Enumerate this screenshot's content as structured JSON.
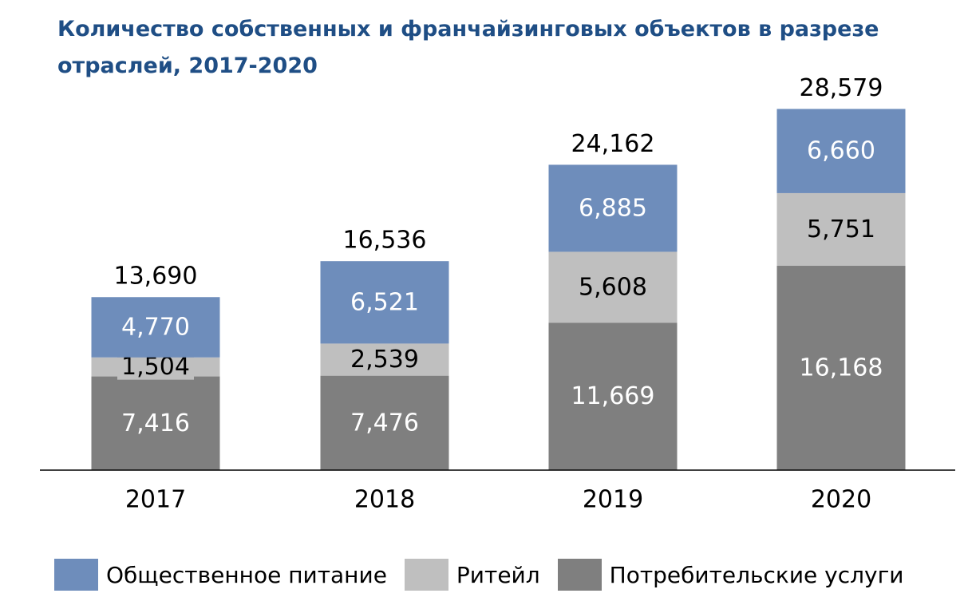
{
  "chart_data": {
    "type": "bar",
    "stacked": true,
    "title": "Количество собственных и франчайзинговых объектов в разрезе отраслей, 2017-2020",
    "xlabel": "",
    "ylabel": "",
    "categories": [
      "2017",
      "2018",
      "2019",
      "2020"
    ],
    "series": [
      {
        "name": "Потребительские услуги",
        "color": "#7F7F7F",
        "label_color": "#FFFFFF",
        "values": [
          7416,
          7476,
          11669,
          16168
        ],
        "labels": [
          "7,416",
          "7,476",
          "11,669",
          "16,168"
        ]
      },
      {
        "name": "Ритейл",
        "color": "#BFBFBF",
        "label_color": "#000000",
        "values": [
          1504,
          2539,
          5608,
          5751
        ],
        "labels": [
          "1,504",
          "2,539",
          "5,608",
          "5,751"
        ]
      },
      {
        "name": "Общественное питание",
        "color": "#6E8DBB",
        "label_color": "#FFFFFF",
        "values": [
          4770,
          6521,
          6885,
          6660
        ],
        "labels": [
          "4,770",
          "6,521",
          "6,885",
          "6,660"
        ]
      }
    ],
    "totals": [
      13690,
      16536,
      24162,
      28579
    ],
    "total_labels": [
      "13,690",
      "16,536",
      "24,162",
      "28,579"
    ],
    "legend_order": [
      "Общественное питание",
      "Ритейл",
      "Потребительские услуги"
    ],
    "ylim": [
      0,
      30000
    ],
    "grid": false,
    "legend_position": "bottom"
  }
}
